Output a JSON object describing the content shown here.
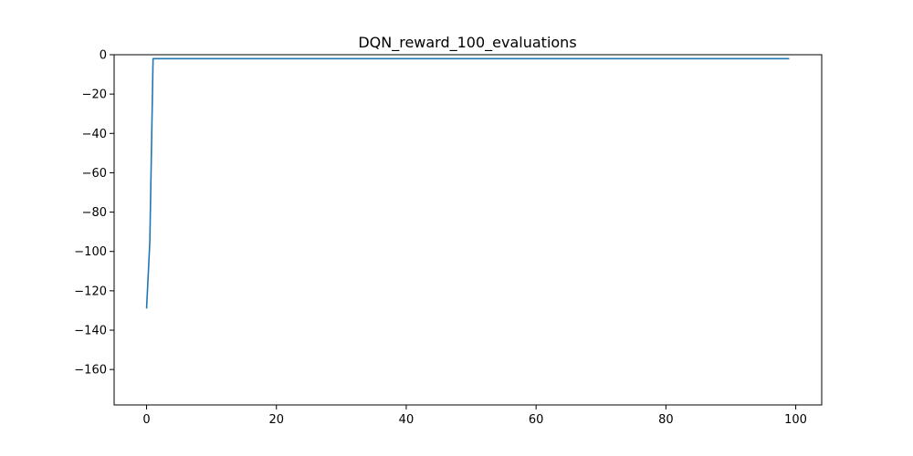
{
  "chart_data": {
    "type": "line",
    "title": "DQN_reward_100_evaluations",
    "xlabel": "",
    "ylabel": "",
    "xlim": [
      -5,
      104
    ],
    "ylim": [
      -178,
      0
    ],
    "xticks": [
      0,
      20,
      40,
      60,
      80,
      100
    ],
    "yticks": [
      0,
      -20,
      -40,
      -60,
      -80,
      -100,
      -120,
      -140,
      -160
    ],
    "ytick_labels": [
      "0",
      "−20",
      "−40",
      "−60",
      "−80",
      "−100",
      "−120",
      "−140",
      "−160"
    ],
    "grid": false,
    "line_color": "#1f77b4",
    "series": [
      {
        "x": [
          0,
          0.5,
          1,
          2,
          99
        ],
        "y": [
          -129,
          -95,
          -2,
          -2,
          -2
        ]
      }
    ]
  }
}
